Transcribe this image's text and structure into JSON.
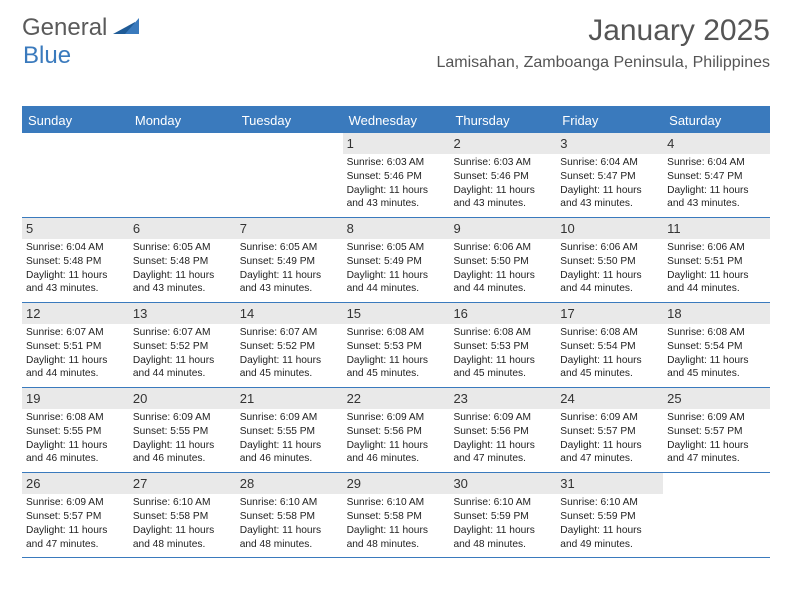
{
  "brand": {
    "part1": "General",
    "part2": "Blue"
  },
  "title": "January 2025",
  "location": "Lamisahan, Zamboanga Peninsula, Philippines",
  "colors": {
    "accent": "#3a7abd",
    "header_text": "#ffffff",
    "daynum_bg": "#e9e9e9",
    "text": "#222222",
    "title_text": "#555555",
    "logo_gray": "#5a5a5a"
  },
  "dayNames": [
    "Sunday",
    "Monday",
    "Tuesday",
    "Wednesday",
    "Thursday",
    "Friday",
    "Saturday"
  ],
  "weeks": [
    [
      {
        "blank": true
      },
      {
        "blank": true
      },
      {
        "blank": true
      },
      {
        "day": "1",
        "sunrise": "Sunrise: 6:03 AM",
        "sunset": "Sunset: 5:46 PM",
        "daylight": "Daylight: 11 hours and 43 minutes."
      },
      {
        "day": "2",
        "sunrise": "Sunrise: 6:03 AM",
        "sunset": "Sunset: 5:46 PM",
        "daylight": "Daylight: 11 hours and 43 minutes."
      },
      {
        "day": "3",
        "sunrise": "Sunrise: 6:04 AM",
        "sunset": "Sunset: 5:47 PM",
        "daylight": "Daylight: 11 hours and 43 minutes."
      },
      {
        "day": "4",
        "sunrise": "Sunrise: 6:04 AM",
        "sunset": "Sunset: 5:47 PM",
        "daylight": "Daylight: 11 hours and 43 minutes."
      }
    ],
    [
      {
        "day": "5",
        "sunrise": "Sunrise: 6:04 AM",
        "sunset": "Sunset: 5:48 PM",
        "daylight": "Daylight: 11 hours and 43 minutes."
      },
      {
        "day": "6",
        "sunrise": "Sunrise: 6:05 AM",
        "sunset": "Sunset: 5:48 PM",
        "daylight": "Daylight: 11 hours and 43 minutes."
      },
      {
        "day": "7",
        "sunrise": "Sunrise: 6:05 AM",
        "sunset": "Sunset: 5:49 PM",
        "daylight": "Daylight: 11 hours and 43 minutes."
      },
      {
        "day": "8",
        "sunrise": "Sunrise: 6:05 AM",
        "sunset": "Sunset: 5:49 PM",
        "daylight": "Daylight: 11 hours and 44 minutes."
      },
      {
        "day": "9",
        "sunrise": "Sunrise: 6:06 AM",
        "sunset": "Sunset: 5:50 PM",
        "daylight": "Daylight: 11 hours and 44 minutes."
      },
      {
        "day": "10",
        "sunrise": "Sunrise: 6:06 AM",
        "sunset": "Sunset: 5:50 PM",
        "daylight": "Daylight: 11 hours and 44 minutes."
      },
      {
        "day": "11",
        "sunrise": "Sunrise: 6:06 AM",
        "sunset": "Sunset: 5:51 PM",
        "daylight": "Daylight: 11 hours and 44 minutes."
      }
    ],
    [
      {
        "day": "12",
        "sunrise": "Sunrise: 6:07 AM",
        "sunset": "Sunset: 5:51 PM",
        "daylight": "Daylight: 11 hours and 44 minutes."
      },
      {
        "day": "13",
        "sunrise": "Sunrise: 6:07 AM",
        "sunset": "Sunset: 5:52 PM",
        "daylight": "Daylight: 11 hours and 44 minutes."
      },
      {
        "day": "14",
        "sunrise": "Sunrise: 6:07 AM",
        "sunset": "Sunset: 5:52 PM",
        "daylight": "Daylight: 11 hours and 45 minutes."
      },
      {
        "day": "15",
        "sunrise": "Sunrise: 6:08 AM",
        "sunset": "Sunset: 5:53 PM",
        "daylight": "Daylight: 11 hours and 45 minutes."
      },
      {
        "day": "16",
        "sunrise": "Sunrise: 6:08 AM",
        "sunset": "Sunset: 5:53 PM",
        "daylight": "Daylight: 11 hours and 45 minutes."
      },
      {
        "day": "17",
        "sunrise": "Sunrise: 6:08 AM",
        "sunset": "Sunset: 5:54 PM",
        "daylight": "Daylight: 11 hours and 45 minutes."
      },
      {
        "day": "18",
        "sunrise": "Sunrise: 6:08 AM",
        "sunset": "Sunset: 5:54 PM",
        "daylight": "Daylight: 11 hours and 45 minutes."
      }
    ],
    [
      {
        "day": "19",
        "sunrise": "Sunrise: 6:08 AM",
        "sunset": "Sunset: 5:55 PM",
        "daylight": "Daylight: 11 hours and 46 minutes."
      },
      {
        "day": "20",
        "sunrise": "Sunrise: 6:09 AM",
        "sunset": "Sunset: 5:55 PM",
        "daylight": "Daylight: 11 hours and 46 minutes."
      },
      {
        "day": "21",
        "sunrise": "Sunrise: 6:09 AM",
        "sunset": "Sunset: 5:55 PM",
        "daylight": "Daylight: 11 hours and 46 minutes."
      },
      {
        "day": "22",
        "sunrise": "Sunrise: 6:09 AM",
        "sunset": "Sunset: 5:56 PM",
        "daylight": "Daylight: 11 hours and 46 minutes."
      },
      {
        "day": "23",
        "sunrise": "Sunrise: 6:09 AM",
        "sunset": "Sunset: 5:56 PM",
        "daylight": "Daylight: 11 hours and 47 minutes."
      },
      {
        "day": "24",
        "sunrise": "Sunrise: 6:09 AM",
        "sunset": "Sunset: 5:57 PM",
        "daylight": "Daylight: 11 hours and 47 minutes."
      },
      {
        "day": "25",
        "sunrise": "Sunrise: 6:09 AM",
        "sunset": "Sunset: 5:57 PM",
        "daylight": "Daylight: 11 hours and 47 minutes."
      }
    ],
    [
      {
        "day": "26",
        "sunrise": "Sunrise: 6:09 AM",
        "sunset": "Sunset: 5:57 PM",
        "daylight": "Daylight: 11 hours and 47 minutes."
      },
      {
        "day": "27",
        "sunrise": "Sunrise: 6:10 AM",
        "sunset": "Sunset: 5:58 PM",
        "daylight": "Daylight: 11 hours and 48 minutes."
      },
      {
        "day": "28",
        "sunrise": "Sunrise: 6:10 AM",
        "sunset": "Sunset: 5:58 PM",
        "daylight": "Daylight: 11 hours and 48 minutes."
      },
      {
        "day": "29",
        "sunrise": "Sunrise: 6:10 AM",
        "sunset": "Sunset: 5:58 PM",
        "daylight": "Daylight: 11 hours and 48 minutes."
      },
      {
        "day": "30",
        "sunrise": "Sunrise: 6:10 AM",
        "sunset": "Sunset: 5:59 PM",
        "daylight": "Daylight: 11 hours and 48 minutes."
      },
      {
        "day": "31",
        "sunrise": "Sunrise: 6:10 AM",
        "sunset": "Sunset: 5:59 PM",
        "daylight": "Daylight: 11 hours and 49 minutes."
      },
      {
        "blank": true
      }
    ]
  ]
}
